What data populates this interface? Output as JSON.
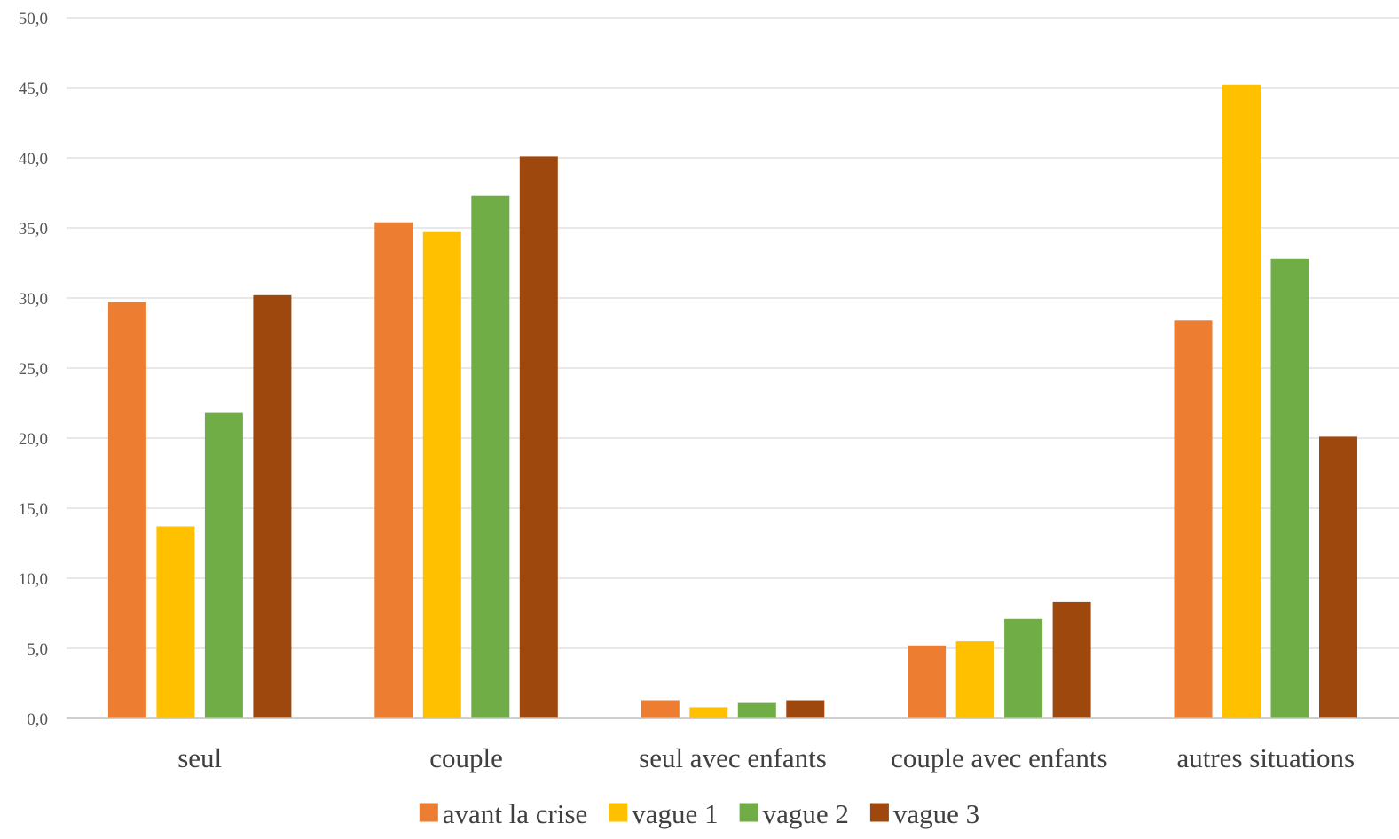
{
  "chart_data": {
    "type": "bar",
    "title": "",
    "xlabel": "",
    "ylabel": "",
    "ylim": [
      0,
      50
    ],
    "yticks": [
      "0,0",
      "5,0",
      "10,0",
      "15,0",
      "20,0",
      "25,0",
      "30,0",
      "35,0",
      "40,0",
      "45,0",
      "50,0"
    ],
    "grid": true,
    "legend_position": "bottom",
    "categories": [
      "seul",
      "couple",
      "seul avec enfants",
      "couple avec enfants",
      "autres situations"
    ],
    "series": [
      {
        "name": "avant la crise",
        "color": "#ED7D31",
        "values": [
          29.7,
          35.4,
          1.3,
          5.2,
          28.4
        ]
      },
      {
        "name": "vague 1",
        "color": "#FFC000",
        "values": [
          13.7,
          34.7,
          0.8,
          5.5,
          45.2
        ]
      },
      {
        "name": "vague 2",
        "color": "#70AD47",
        "values": [
          21.8,
          37.3,
          1.1,
          7.1,
          32.8
        ]
      },
      {
        "name": "vague 3",
        "color": "#9E480E",
        "values": [
          30.2,
          40.1,
          1.3,
          8.3,
          20.1
        ]
      }
    ]
  }
}
